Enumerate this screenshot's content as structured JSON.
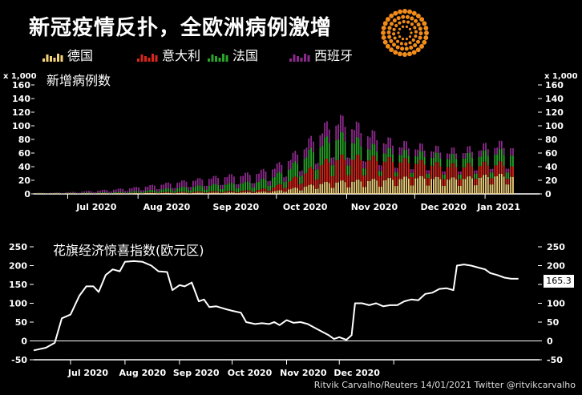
{
  "title": "新冠疫情反扑，全欧洲病例激增",
  "legend": [
    {
      "name": "德国",
      "color": "#f4d27a"
    },
    {
      "name": "意大利",
      "color": "#d8261c"
    },
    {
      "name": "法国",
      "color": "#2aa52a"
    },
    {
      "name": "西班牙",
      "color": "#8c2a8c"
    }
  ],
  "credit": "Ritvik Carvalho/Reuters 14/01/2021 Twitter @ritvikcarvalho",
  "chart_data": [
    {
      "type": "bar",
      "stacked": true,
      "title": "新增病例数",
      "unit_label": "x 1,000",
      "ylim": [
        0,
        160
      ],
      "yticks": [
        0,
        20,
        40,
        60,
        80,
        100,
        120,
        140,
        160
      ],
      "xticks": [
        "Jul 2020",
        "Aug 2020",
        "Sep 2020",
        "Oct 2020",
        "Nov 2020",
        "Dec 2020",
        "Jan 2021"
      ],
      "x_start": "2020-06-17",
      "x_end": "2021-01-13",
      "series": [
        {
          "name": "德国",
          "weekly_levels": [
            0.5,
            0.4,
            0.4,
            0.5,
            0.6,
            0.7,
            0.9,
            1.2,
            1.4,
            1.5,
            1.6,
            1.8,
            2.0,
            2.2,
            2.8,
            4,
            7,
            11,
            15,
            17,
            18,
            19,
            20,
            22,
            23,
            22,
            21,
            22,
            24,
            26,
            25,
            26,
            22,
            20,
            22
          ]
        },
        {
          "name": "意大利",
          "weekly_levels": [
            0.2,
            0.2,
            0.2,
            0.2,
            0.3,
            0.3,
            0.4,
            0.6,
            0.9,
            1.2,
            1.4,
            1.6,
            1.8,
            2.2,
            3,
            6,
            12,
            20,
            28,
            33,
            32,
            30,
            27,
            24,
            21,
            19,
            18,
            17,
            17,
            16,
            15,
            14,
            14,
            13,
            13
          ]
        },
        {
          "name": "法国",
          "weekly_levels": [
            0.5,
            0.5,
            0.6,
            0.8,
            1.0,
            1.4,
            2.0,
            3.0,
            4.5,
            6,
            7.5,
            9,
            10,
            11,
            12,
            15,
            18,
            23,
            28,
            30,
            24,
            16,
            12,
            11,
            11,
            12,
            12,
            13,
            14,
            16,
            16,
            17,
            15,
            17,
            18
          ]
        },
        {
          "name": "西班牙",
          "weekly_levels": [
            0.3,
            0.5,
            1,
            2,
            3,
            4,
            5,
            6,
            7,
            8,
            9,
            10,
            11,
            11,
            12,
            12,
            13,
            14,
            18,
            22,
            20,
            18,
            14,
            11,
            10,
            9,
            8,
            8,
            9,
            10,
            11,
            13,
            16,
            18,
            20
          ]
        }
      ]
    },
    {
      "type": "line",
      "title": "花旗经济惊喜指数(欧元区)",
      "ylim": [
        -50,
        250
      ],
      "yticks": [
        -50,
        0,
        50,
        100,
        150,
        200,
        250
      ],
      "xticks": [
        "Jul 2020",
        "Aug 2020",
        "Sep 2020",
        "Oct 2020",
        "Nov 2020",
        "Dec 2020"
      ],
      "last_value": "165.3",
      "points": [
        [
          "2020-06-10",
          -25
        ],
        [
          "2020-06-17",
          -18
        ],
        [
          "2020-06-22",
          -5
        ],
        [
          "2020-06-26",
          60
        ],
        [
          "2020-07-01",
          70
        ],
        [
          "2020-07-06",
          120
        ],
        [
          "2020-07-10",
          145
        ],
        [
          "2020-07-14",
          145
        ],
        [
          "2020-07-17",
          130
        ],
        [
          "2020-07-21",
          175
        ],
        [
          "2020-07-25",
          190
        ],
        [
          "2020-07-29",
          185
        ],
        [
          "2020-08-01",
          210
        ],
        [
          "2020-08-06",
          212
        ],
        [
          "2020-08-11",
          210
        ],
        [
          "2020-08-16",
          200
        ],
        [
          "2020-08-20",
          185
        ],
        [
          "2020-08-25",
          183
        ],
        [
          "2020-08-28",
          135
        ],
        [
          "2020-09-01",
          148
        ],
        [
          "2020-09-04",
          145
        ],
        [
          "2020-09-08",
          155
        ],
        [
          "2020-09-12",
          105
        ],
        [
          "2020-09-15",
          110
        ],
        [
          "2020-09-18",
          90
        ],
        [
          "2020-09-22",
          92
        ],
        [
          "2020-09-27",
          85
        ],
        [
          "2020-10-01",
          80
        ],
        [
          "2020-10-06",
          75
        ],
        [
          "2020-10-09",
          50
        ],
        [
          "2020-10-14",
          45
        ],
        [
          "2020-10-18",
          47
        ],
        [
          "2020-10-22",
          45
        ],
        [
          "2020-10-25",
          50
        ],
        [
          "2020-10-28",
          42
        ],
        [
          "2020-11-01",
          55
        ],
        [
          "2020-11-05",
          48
        ],
        [
          "2020-11-09",
          50
        ],
        [
          "2020-11-13",
          45
        ],
        [
          "2020-11-17",
          35
        ],
        [
          "2020-11-21",
          25
        ],
        [
          "2020-11-25",
          15
        ],
        [
          "2020-11-28",
          5
        ],
        [
          "2020-12-01",
          10
        ],
        [
          "2020-12-05",
          3
        ],
        [
          "2020-12-08",
          15
        ],
        [
          "2020-12-10",
          100
        ],
        [
          "2020-12-14",
          100
        ],
        [
          "2020-12-18",
          95
        ],
        [
          "2020-12-22",
          100
        ],
        [
          "2020-12-26",
          92
        ],
        [
          "2020-12-30",
          95
        ],
        [
          "2021-01-03",
          95
        ],
        [
          "2021-01-07",
          105
        ],
        [
          "2021-01-11",
          110
        ],
        [
          "2021-01-15",
          108
        ],
        [
          "2021-01-19",
          125
        ],
        [
          "2021-01-23",
          128
        ],
        [
          "2021-01-27",
          138
        ],
        [
          "2021-01-31",
          140
        ],
        [
          "2021-02-04",
          135
        ],
        [
          "2021-02-06",
          200
        ],
        [
          "2021-02-10",
          203
        ],
        [
          "2021-02-14",
          200
        ],
        [
          "2021-02-18",
          195
        ],
        [
          "2021-02-22",
          190
        ],
        [
          "2021-02-25",
          180
        ],
        [
          "2021-03-01",
          175
        ],
        [
          "2021-03-05",
          168
        ],
        [
          "2021-03-09",
          165
        ],
        [
          "2021-03-13",
          165
        ]
      ]
    }
  ]
}
